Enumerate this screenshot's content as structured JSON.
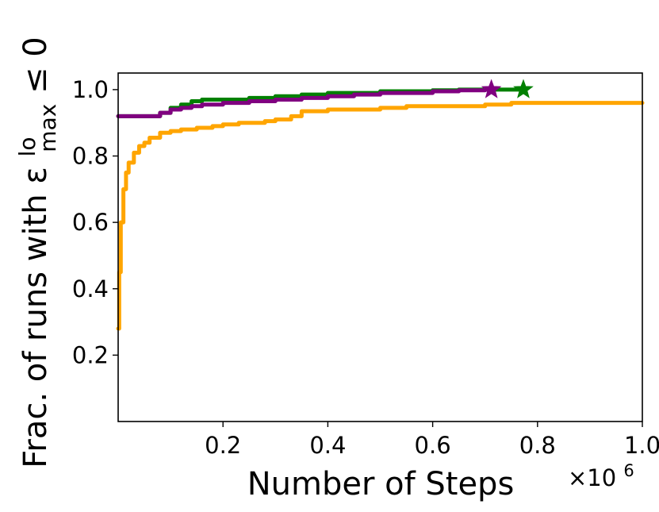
{
  "chart_data": {
    "type": "line",
    "title": "",
    "xlabel": "Number of Steps",
    "ylabel": "Frac. of runs with ε",
    "ylabel_sup": "lo",
    "ylabel_sub": "max",
    "ylabel_tail": " ≤ 0",
    "x_offset_label": "×10",
    "x_offset_exp": "6",
    "xlim": [
      0,
      1000000
    ],
    "ylim": [
      0,
      1.05
    ],
    "x_ticks": [
      200000,
      400000,
      600000,
      800000,
      1000000
    ],
    "x_tick_labels": [
      "0.2",
      "0.4",
      "0.6",
      "0.8",
      "1.0"
    ],
    "y_ticks": [
      0.2,
      0.4,
      0.6,
      0.8,
      1.0
    ],
    "y_tick_labels": [
      "0.2",
      "0.4",
      "0.6",
      "0.8",
      "1.0"
    ],
    "grid": false,
    "series": [
      {
        "color": "#ffa500",
        "x": [
          0,
          2000,
          5000,
          10000,
          15000,
          20000,
          30000,
          40000,
          50000,
          60000,
          80000,
          100000,
          120000,
          150000,
          180000,
          200000,
          230000,
          250000,
          280000,
          300000,
          330000,
          350000,
          400000,
          450000,
          500000,
          550000,
          600000,
          650000,
          700000,
          730000,
          750000,
          800000,
          900000,
          1000000
        ],
        "y": [
          0.28,
          0.45,
          0.6,
          0.7,
          0.75,
          0.78,
          0.81,
          0.83,
          0.84,
          0.855,
          0.87,
          0.875,
          0.88,
          0.885,
          0.89,
          0.895,
          0.9,
          0.9,
          0.905,
          0.91,
          0.92,
          0.935,
          0.94,
          0.94,
          0.945,
          0.95,
          0.95,
          0.95,
          0.955,
          0.955,
          0.96,
          0.96,
          0.96,
          0.96
        ]
      },
      {
        "color": "#008000",
        "x": [
          0,
          40000,
          80000,
          100000,
          120000,
          140000,
          160000,
          200000,
          250000,
          300000,
          350000,
          400000,
          450000,
          500000,
          550000,
          600000,
          650000,
          700000,
          730000,
          773000
        ],
        "y": [
          0.92,
          0.92,
          0.93,
          0.945,
          0.955,
          0.965,
          0.97,
          0.97,
          0.975,
          0.98,
          0.985,
          0.99,
          0.99,
          0.995,
          0.995,
          0.998,
          1.0,
          1.0,
          1.0,
          1.0
        ],
        "end_marker": "star"
      },
      {
        "color": "#800080",
        "x": [
          0,
          40000,
          80000,
          100000,
          120000,
          140000,
          160000,
          200000,
          250000,
          300000,
          350000,
          400000,
          450000,
          500000,
          550000,
          600000,
          650000,
          700000,
          712000
        ],
        "y": [
          0.92,
          0.92,
          0.93,
          0.94,
          0.945,
          0.95,
          0.955,
          0.96,
          0.965,
          0.97,
          0.975,
          0.98,
          0.985,
          0.99,
          0.99,
          0.995,
          0.998,
          1.0,
          1.0
        ],
        "end_marker": "star"
      }
    ]
  }
}
